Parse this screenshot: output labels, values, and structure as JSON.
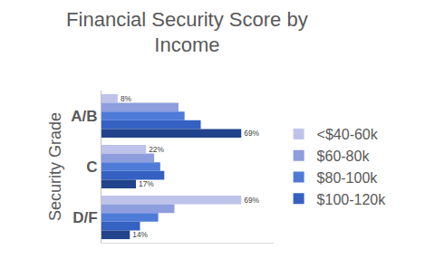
{
  "chart_data": {
    "type": "bar",
    "orientation": "horizontal",
    "title": "Financial Security Score by\nIncome",
    "y_label": "Security Grade",
    "categories": [
      "A/B",
      "C",
      "D/F"
    ],
    "series": [
      {
        "name": "<$40-60k",
        "color": "#bfc3ea",
        "values": [
          8,
          22,
          69
        ],
        "value_labels": [
          "8%",
          "22%",
          "69%"
        ]
      },
      {
        "name": "$60-80k",
        "color": "#8e9ddd",
        "values": [
          38,
          26,
          36
        ],
        "value_labels": [
          null,
          null,
          null
        ]
      },
      {
        "name": "$80-100k",
        "color": "#4f7bd8",
        "values": [
          41,
          29,
          28
        ],
        "value_labels": [
          null,
          null,
          null
        ]
      },
      {
        "name": "$100-120k",
        "color": "#3561c2",
        "values": [
          49,
          31,
          19
        ],
        "value_labels": [
          null,
          null,
          null
        ]
      },
      {
        "name": null,
        "color": "#22448c",
        "values": [
          69,
          17,
          14
        ],
        "value_labels": [
          "69%",
          "17%",
          "14%"
        ]
      }
    ],
    "xlim": [
      0,
      85
    ],
    "xticks": [],
    "grid": false,
    "legend": "right",
    "data_labels": true,
    "tick_labels": "y"
  }
}
